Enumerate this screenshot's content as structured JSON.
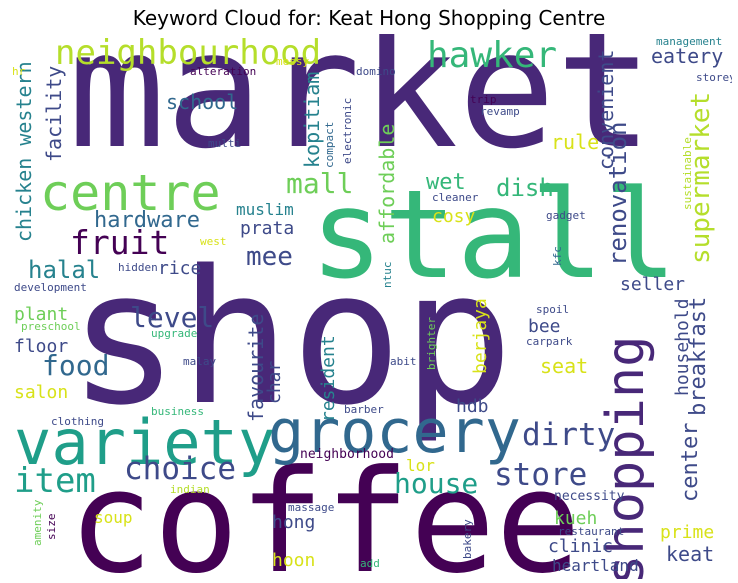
{
  "title": "Keyword Cloud for: Keat Hong Shopping Centre",
  "palette": {
    "dark_purple": "#440154",
    "purple": "#482878",
    "indigo": "#3e4a89",
    "blue": "#31688e",
    "teal": "#26828e",
    "green_teal": "#1f9e89",
    "green": "#35b779",
    "lime": "#6ece58",
    "yellow_green": "#b5de2b",
    "yellow": "#d8e219"
  },
  "words": [
    {
      "text": "market"
    },
    {
      "text": "shop"
    },
    {
      "text": "stall"
    },
    {
      "text": "coffee"
    },
    {
      "text": "variety"
    },
    {
      "text": "grocery"
    },
    {
      "text": "shopping"
    },
    {
      "text": "centre"
    },
    {
      "text": "neighbourhood"
    },
    {
      "text": "hawker"
    },
    {
      "text": "fruit"
    },
    {
      "text": "item"
    },
    {
      "text": "choice"
    },
    {
      "text": "dirty"
    },
    {
      "text": "store"
    },
    {
      "text": "house"
    },
    {
      "text": "food"
    },
    {
      "text": "mall"
    },
    {
      "text": "level"
    },
    {
      "text": "mee"
    },
    {
      "text": "halal"
    },
    {
      "text": "hardware"
    },
    {
      "text": "dish"
    },
    {
      "text": "wet"
    },
    {
      "text": "renovation"
    },
    {
      "text": "supermarket"
    },
    {
      "text": "convenient"
    },
    {
      "text": "breakfast"
    },
    {
      "text": "center"
    },
    {
      "text": "household"
    },
    {
      "text": "eatery"
    },
    {
      "text": "rule"
    },
    {
      "text": "kopitiam"
    },
    {
      "text": "affordable"
    },
    {
      "text": "school"
    },
    {
      "text": "facility"
    },
    {
      "text": "chicken western"
    },
    {
      "text": "prata"
    },
    {
      "text": "muslim"
    },
    {
      "text": "cosy"
    },
    {
      "text": "rice"
    },
    {
      "text": "plant"
    },
    {
      "text": "floor"
    },
    {
      "text": "salon"
    },
    {
      "text": "favourite"
    },
    {
      "text": "char"
    },
    {
      "text": "resident"
    },
    {
      "text": "berjaya"
    },
    {
      "text": "bee"
    },
    {
      "text": "seat"
    },
    {
      "text": "seller"
    },
    {
      "text": "hdb"
    },
    {
      "text": "lor"
    },
    {
      "text": "hong"
    },
    {
      "text": "hoon"
    },
    {
      "text": "soup"
    },
    {
      "text": "kueh"
    },
    {
      "text": "clinic"
    },
    {
      "text": "heartland"
    },
    {
      "text": "prime"
    },
    {
      "text": "keat"
    },
    {
      "text": "necessity"
    },
    {
      "text": "neighborhood"
    },
    {
      "text": "restaurant"
    },
    {
      "text": "bakery"
    },
    {
      "text": "massage"
    },
    {
      "text": "add"
    },
    {
      "text": "size"
    },
    {
      "text": "amenity"
    },
    {
      "text": "indian"
    },
    {
      "text": "business"
    },
    {
      "text": "clothing"
    },
    {
      "text": "barber"
    },
    {
      "text": "abit"
    },
    {
      "text": "brighter"
    },
    {
      "text": "carpark"
    },
    {
      "text": "spoil"
    },
    {
      "text": "malay"
    },
    {
      "text": "upgrade"
    },
    {
      "text": "preschool"
    },
    {
      "text": "development"
    },
    {
      "text": "hidden"
    },
    {
      "text": "west"
    },
    {
      "text": "ntuc"
    },
    {
      "text": "kfc"
    },
    {
      "text": "gadget"
    },
    {
      "text": "cleaner"
    },
    {
      "text": "sustainable"
    },
    {
      "text": "management"
    },
    {
      "text": "storey"
    },
    {
      "text": "trip"
    },
    {
      "text": "revamp"
    },
    {
      "text": "domino"
    },
    {
      "text": "messy"
    },
    {
      "text": "alteration"
    },
    {
      "text": "hr"
    },
    {
      "text": "multi"
    },
    {
      "text": "compact"
    },
    {
      "text": "electronic"
    }
  ]
}
